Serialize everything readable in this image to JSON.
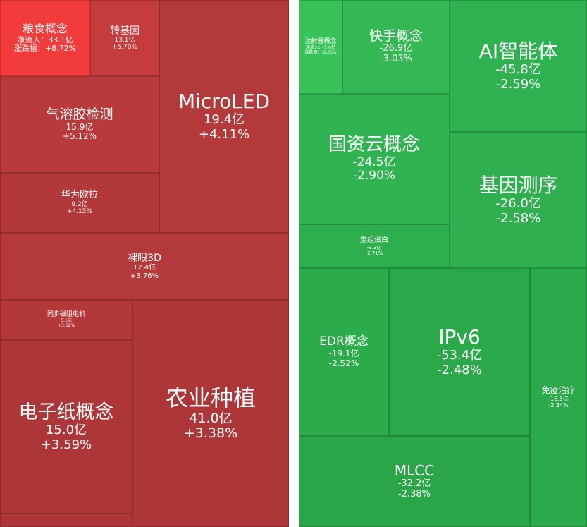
{
  "left_tiles": [
    {
      "name": "粮食概念",
      "flow": "净流入：33.1亿",
      "change": "涨跌幅：+8.72%"
    },
    {
      "name": "转基因",
      "flow": "13.1亿",
      "change": "+5.70%"
    },
    {
      "name": "MicroLED",
      "flow": "19.4亿",
      "change": "+4.11%"
    },
    {
      "name": "气溶胶检测",
      "flow": "15.9亿",
      "change": "+5.12%"
    },
    {
      "name": "华为欧拉",
      "flow": "9.2亿",
      "change": "+4.15%"
    },
    {
      "name": "裸眼3D",
      "flow": "12.4亿",
      "change": "+3.76%"
    },
    {
      "name": "同步磁阻电机",
      "flow": "5.1亿",
      "change": "+3.62%"
    },
    {
      "name": "农业种植",
      "flow": "41.0亿",
      "change": "+3.38%"
    },
    {
      "name": "电子纸概念",
      "flow": "15.0亿",
      "change": "+3.59%"
    }
  ],
  "right_tiles": [
    {
      "name": "注射器概念",
      "flow": "净流入：-5.6亿",
      "change": "涨跌幅：-3.25%"
    },
    {
      "name": "快手概念",
      "flow": "-26.9亿",
      "change": "-3.03%"
    },
    {
      "name": "AI智能体",
      "flow": "-45.8亿",
      "change": "-2.59%"
    },
    {
      "name": "国资云概念",
      "flow": "-24.5亿",
      "change": "-2.90%"
    },
    {
      "name": "基因测序",
      "flow": "-26.0亿",
      "change": "-2.58%"
    },
    {
      "name": "重组蛋白",
      "flow": "-9.3亿",
      "change": "-2.71%"
    },
    {
      "name": "EDR概念",
      "flow": "-19.1亿",
      "change": "-2.52%"
    },
    {
      "name": "IPv6",
      "flow": "-53.4亿",
      "change": "-2.48%"
    },
    {
      "name": "免疫治疗",
      "flow": "-16.5亿",
      "change": "-2.34%"
    },
    {
      "name": "MLCC",
      "flow": "-32.2亿",
      "change": "-2.38%"
    }
  ]
}
